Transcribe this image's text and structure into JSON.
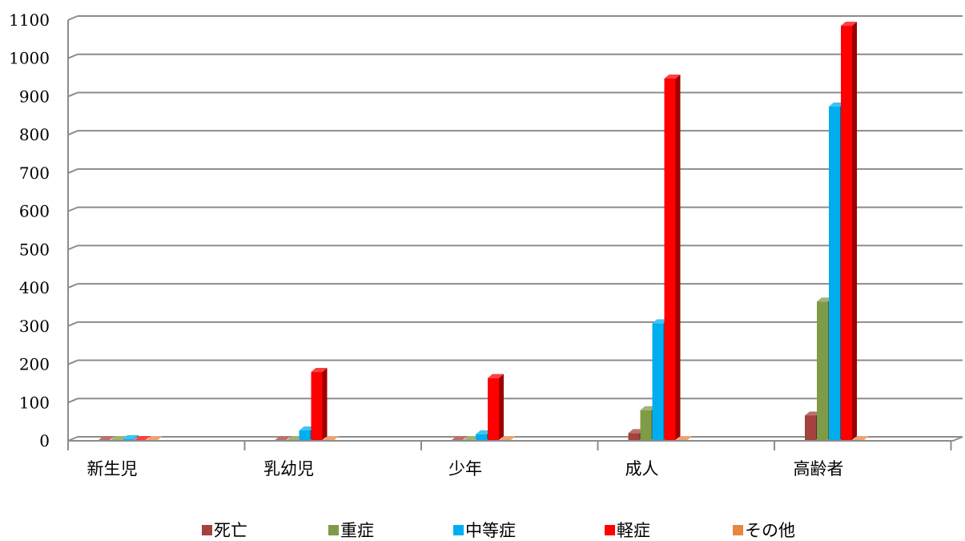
{
  "chart_data": {
    "type": "bar",
    "categories": [
      "新生児",
      "乳幼児",
      "少年",
      "成人",
      "高齢者"
    ],
    "series": [
      {
        "name": "死亡",
        "color": "#a3423e",
        "values": [
          0,
          0,
          0,
          18,
          64
        ]
      },
      {
        "name": "重症",
        "color": "#7f9b48",
        "values": [
          0,
          0,
          0,
          78,
          362
        ]
      },
      {
        "name": "中等症",
        "color": "#00aef0",
        "values": [
          2,
          25,
          15,
          305,
          872
        ]
      },
      {
        "name": "軽症",
        "color": "#ff0000",
        "values": [
          0,
          178,
          162,
          945,
          1083
        ]
      },
      {
        "name": "その他",
        "color": "#e8863e",
        "values": [
          0,
          0,
          0,
          0,
          0
        ]
      }
    ],
    "ylim": [
      0,
      1100
    ],
    "yticks": [
      0,
      100,
      200,
      300,
      400,
      500,
      600,
      700,
      800,
      900,
      1000,
      1100
    ],
    "grid": true,
    "legend": "bottom",
    "style": "3d-column"
  }
}
